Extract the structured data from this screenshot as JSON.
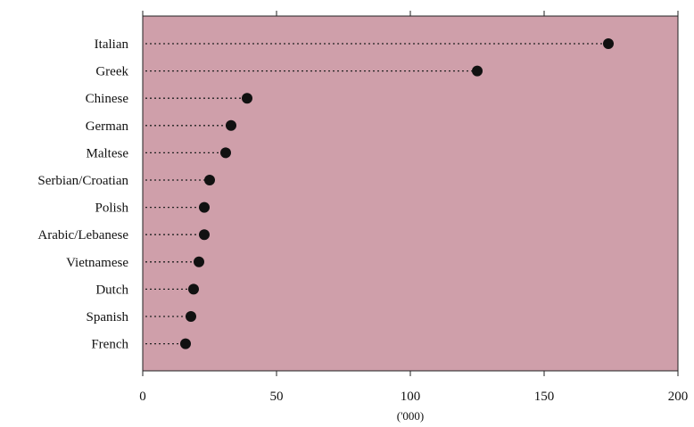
{
  "chart_data": {
    "type": "scatter",
    "style": "dot-plot",
    "categories": [
      "Italian",
      "Greek",
      "Chinese",
      "German",
      "Maltese",
      "Serbian/Croatian",
      "Polish",
      "Arabic/Lebanese",
      "Vietnamese",
      "Dutch",
      "Spanish",
      "French"
    ],
    "values": [
      174,
      125,
      39,
      33,
      31,
      25,
      23,
      23,
      21,
      19,
      18,
      16
    ],
    "xlabel": "('000)",
    "xlim": [
      0,
      200
    ],
    "xticks": [
      0,
      50,
      100,
      150,
      200
    ],
    "grid": false,
    "colors": {
      "plot_background": "#cf9faa",
      "marker": "#111111",
      "leader_line": "#222222",
      "axis": "#222222"
    }
  }
}
